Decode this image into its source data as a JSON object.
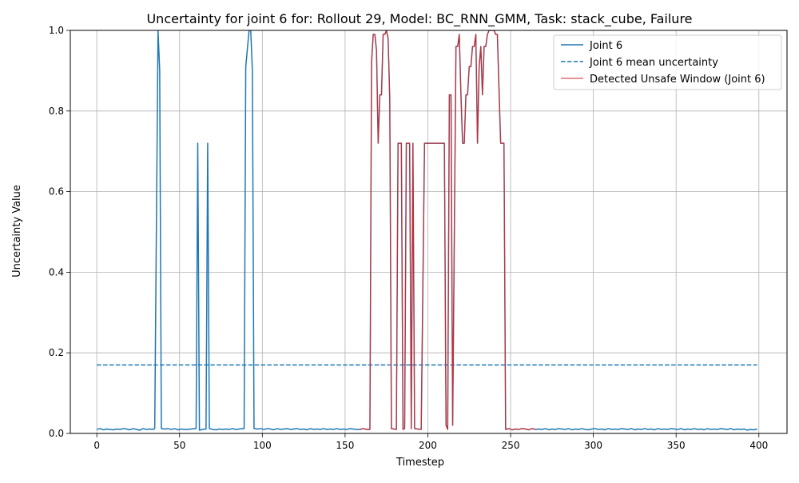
{
  "chart_data": {
    "type": "line",
    "title": "Uncertainty for joint 6 for: Rollout 29, Model: BC_RNN_GMM, Task: stack_cube, Failure",
    "xlabel": "Timestep",
    "ylabel": "Uncertainty Value",
    "xlim": [
      -16,
      417
    ],
    "ylim": [
      0,
      1
    ],
    "xticks": [
      0,
      50,
      100,
      150,
      200,
      250,
      300,
      350,
      400
    ],
    "xtick_labels": [
      "0",
      "50",
      "100",
      "150",
      "200",
      "250",
      "300",
      "350",
      "400"
    ],
    "yticks": [
      0,
      0.2,
      0.4,
      0.6,
      0.8,
      1.0
    ],
    "ytick_labels": [
      "0.0",
      "0.2",
      "0.4",
      "0.6",
      "0.8",
      "1.0"
    ],
    "grid": true,
    "legend_position": "top-right",
    "series": [
      {
        "name": "Joint 6",
        "style": "solid",
        "color": "#1f77b4",
        "points": [
          [
            0,
            0.01
          ],
          [
            2,
            0.012
          ],
          [
            4,
            0.009
          ],
          [
            6,
            0.011
          ],
          [
            8,
            0.01
          ],
          [
            10,
            0.009
          ],
          [
            12,
            0.011
          ],
          [
            14,
            0.01
          ],
          [
            16,
            0.012
          ],
          [
            18,
            0.011
          ],
          [
            20,
            0.009
          ],
          [
            22,
            0.012
          ],
          [
            24,
            0.01
          ],
          [
            26,
            0.008
          ],
          [
            28,
            0.012
          ],
          [
            30,
            0.01
          ],
          [
            32,
            0.011
          ],
          [
            34,
            0.01
          ],
          [
            35,
            0.012
          ],
          [
            37,
            1.0
          ],
          [
            38,
            0.9
          ],
          [
            39,
            0.012
          ],
          [
            41,
            0.011
          ],
          [
            43,
            0.012
          ],
          [
            45,
            0.01
          ],
          [
            47,
            0.012
          ],
          [
            49,
            0.009
          ],
          [
            51,
            0.011
          ],
          [
            53,
            0.01
          ],
          [
            55,
            0.01
          ],
          [
            57,
            0.011
          ],
          [
            59,
            0.012
          ],
          [
            60,
            0.012
          ],
          [
            61,
            0.72
          ],
          [
            62,
            0.008
          ],
          [
            64,
            0.01
          ],
          [
            66,
            0.011
          ],
          [
            67,
            0.72
          ],
          [
            68,
            0.012
          ],
          [
            70,
            0.01
          ],
          [
            72,
            0.009
          ],
          [
            74,
            0.011
          ],
          [
            76,
            0.01
          ],
          [
            78,
            0.011
          ],
          [
            80,
            0.01
          ],
          [
            82,
            0.012
          ],
          [
            84,
            0.01
          ],
          [
            86,
            0.011
          ],
          [
            88,
            0.012
          ],
          [
            89,
            0.012
          ],
          [
            90,
            0.91
          ],
          [
            92,
            1.0
          ],
          [
            93,
            1.0
          ],
          [
            94,
            0.9
          ],
          [
            95,
            0.012
          ],
          [
            97,
            0.011
          ],
          [
            99,
            0.012
          ],
          [
            101,
            0.01
          ],
          [
            103,
            0.012
          ],
          [
            105,
            0.011
          ],
          [
            107,
            0.009
          ],
          [
            109,
            0.012
          ],
          [
            111,
            0.01
          ],
          [
            113,
            0.011
          ],
          [
            115,
            0.012
          ],
          [
            117,
            0.01
          ],
          [
            119,
            0.011
          ],
          [
            121,
            0.012
          ],
          [
            123,
            0.01
          ],
          [
            125,
            0.011
          ],
          [
            127,
            0.009
          ],
          [
            129,
            0.012
          ],
          [
            131,
            0.01
          ],
          [
            133,
            0.011
          ],
          [
            135,
            0.01
          ],
          [
            137,
            0.012
          ],
          [
            139,
            0.01
          ],
          [
            141,
            0.011
          ],
          [
            143,
            0.01
          ],
          [
            145,
            0.012
          ],
          [
            147,
            0.01
          ],
          [
            149,
            0.011
          ],
          [
            151,
            0.01
          ],
          [
            153,
            0.012
          ],
          [
            155,
            0.011
          ],
          [
            157,
            0.01
          ],
          [
            159,
            0.01
          ],
          [
            161,
            0.012
          ],
          [
            163,
            0.01
          ],
          [
            165,
            0.01
          ],
          [
            166,
            0.92
          ],
          [
            167,
            0.99
          ],
          [
            168,
            0.99
          ],
          [
            169,
            0.95
          ],
          [
            170,
            0.72
          ],
          [
            171,
            0.84
          ],
          [
            172,
            0.84
          ],
          [
            173,
            0.99
          ],
          [
            174,
            0.99
          ],
          [
            175,
            1.0
          ],
          [
            176,
            0.98
          ],
          [
            177,
            0.83
          ],
          [
            178,
            0.012
          ],
          [
            181,
            0.01
          ],
          [
            182,
            0.72
          ],
          [
            184,
            0.72
          ],
          [
            185,
            0.01
          ],
          [
            186,
            0.012
          ],
          [
            187,
            0.72
          ],
          [
            189,
            0.72
          ],
          [
            190,
            0.012
          ],
          [
            191,
            0.72
          ],
          [
            192,
            0.012
          ],
          [
            196,
            0.01
          ],
          [
            198,
            0.72
          ],
          [
            205,
            0.72
          ],
          [
            210,
            0.72
          ],
          [
            211,
            0.02
          ],
          [
            212,
            0.01
          ],
          [
            213,
            0.84
          ],
          [
            214,
            0.84
          ],
          [
            215,
            0.02
          ],
          [
            217,
            0.96
          ],
          [
            218,
            0.96
          ],
          [
            219,
            0.99
          ],
          [
            220,
            0.84
          ],
          [
            221,
            0.72
          ],
          [
            222,
            0.72
          ],
          [
            223,
            0.84
          ],
          [
            224,
            0.84
          ],
          [
            225,
            0.91
          ],
          [
            226,
            0.91
          ],
          [
            227,
            0.96
          ],
          [
            228,
            0.96
          ],
          [
            229,
            0.99
          ],
          [
            230,
            0.72
          ],
          [
            231,
            0.91
          ],
          [
            232,
            0.96
          ],
          [
            233,
            0.84
          ],
          [
            234,
            0.96
          ],
          [
            235,
            0.96
          ],
          [
            236,
            0.99
          ],
          [
            237,
            1.0
          ],
          [
            238,
            1.0
          ],
          [
            240,
            1.0
          ],
          [
            241,
            0.99
          ],
          [
            242,
            0.99
          ],
          [
            244,
            0.72
          ],
          [
            246,
            0.72
          ],
          [
            247,
            0.01
          ],
          [
            249,
            0.012
          ],
          [
            251,
            0.009
          ],
          [
            253,
            0.011
          ],
          [
            255,
            0.01
          ],
          [
            257,
            0.012
          ],
          [
            259,
            0.011
          ],
          [
            261,
            0.009
          ],
          [
            263,
            0.012
          ],
          [
            265,
            0.01
          ],
          [
            267,
            0.011
          ],
          [
            269,
            0.01
          ],
          [
            271,
            0.012
          ],
          [
            273,
            0.009
          ],
          [
            275,
            0.011
          ],
          [
            277,
            0.01
          ],
          [
            279,
            0.012
          ],
          [
            281,
            0.011
          ],
          [
            283,
            0.01
          ],
          [
            285,
            0.012
          ],
          [
            287,
            0.009
          ],
          [
            289,
            0.011
          ],
          [
            291,
            0.01
          ],
          [
            293,
            0.012
          ],
          [
            295,
            0.01
          ],
          [
            297,
            0.009
          ],
          [
            299,
            0.011
          ],
          [
            301,
            0.012
          ],
          [
            303,
            0.01
          ],
          [
            305,
            0.011
          ],
          [
            307,
            0.009
          ],
          [
            309,
            0.012
          ],
          [
            311,
            0.01
          ],
          [
            313,
            0.011
          ],
          [
            315,
            0.01
          ],
          [
            317,
            0.012
          ],
          [
            319,
            0.011
          ],
          [
            321,
            0.01
          ],
          [
            323,
            0.012
          ],
          [
            325,
            0.009
          ],
          [
            327,
            0.011
          ],
          [
            329,
            0.01
          ],
          [
            331,
            0.012
          ],
          [
            333,
            0.01
          ],
          [
            335,
            0.011
          ],
          [
            337,
            0.009
          ],
          [
            339,
            0.012
          ],
          [
            341,
            0.01
          ],
          [
            343,
            0.011
          ],
          [
            345,
            0.01
          ],
          [
            347,
            0.012
          ],
          [
            349,
            0.011
          ],
          [
            351,
            0.01
          ],
          [
            353,
            0.012
          ],
          [
            355,
            0.009
          ],
          [
            357,
            0.011
          ],
          [
            359,
            0.01
          ],
          [
            361,
            0.012
          ],
          [
            363,
            0.01
          ],
          [
            365,
            0.011
          ],
          [
            367,
            0.009
          ],
          [
            369,
            0.012
          ],
          [
            371,
            0.01
          ],
          [
            373,
            0.011
          ],
          [
            375,
            0.01
          ],
          [
            377,
            0.012
          ],
          [
            379,
            0.011
          ],
          [
            381,
            0.01
          ],
          [
            383,
            0.012
          ],
          [
            385,
            0.009
          ],
          [
            387,
            0.011
          ],
          [
            389,
            0.01
          ],
          [
            391,
            0.011
          ],
          [
            393,
            0.008
          ],
          [
            395,
            0.01
          ],
          [
            397,
            0.009
          ],
          [
            399,
            0.011
          ]
        ]
      },
      {
        "name": "Joint 6 mean uncertainty",
        "style": "dashed",
        "color": "#1f77b4",
        "points": [
          [
            0,
            0.17
          ],
          [
            399,
            0.17
          ]
        ]
      },
      {
        "name": "Detected Unsafe Window (Joint 6)",
        "style": "solid-thin",
        "color": "#d62728",
        "x_range": [
          159,
          265
        ]
      }
    ]
  }
}
